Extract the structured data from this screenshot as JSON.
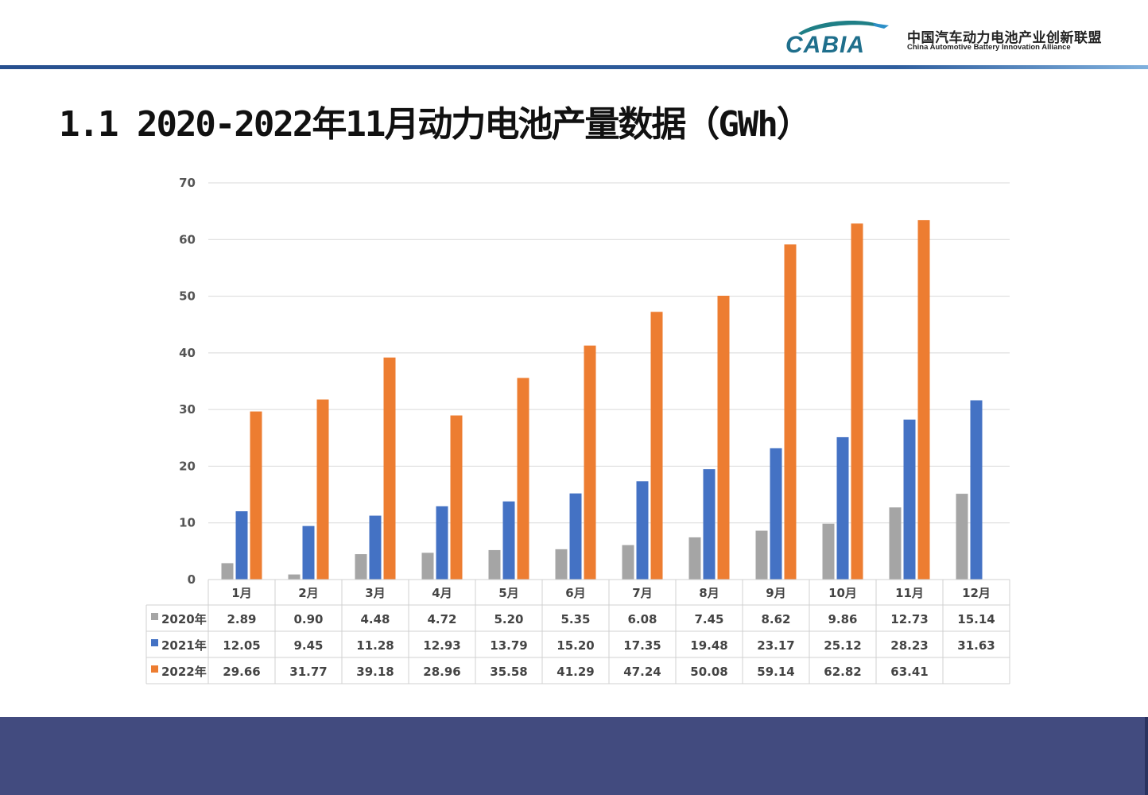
{
  "header": {
    "brand_logo_text": "CABIA",
    "org_name_cn": "中国汽车动力电池产业创新联盟",
    "org_name_en": "China Automotive Battery Innovation Alliance",
    "rule_colors": [
      "#27508f",
      "#7fb0dd"
    ]
  },
  "slide": {
    "title": "1.1 2020-2022年11月动力电池产量数据（GWh）"
  },
  "footer": {
    "band_color": "#424b7f"
  },
  "chart_data": {
    "type": "bar",
    "categories": [
      "1月",
      "2月",
      "3月",
      "4月",
      "5月",
      "6月",
      "7月",
      "8月",
      "9月",
      "10月",
      "11月",
      "12月"
    ],
    "series": [
      {
        "name": "2020年",
        "color": "#a5a5a5",
        "values": [
          2.89,
          0.9,
          4.48,
          4.72,
          5.2,
          5.35,
          6.08,
          7.45,
          8.62,
          9.86,
          12.73,
          15.14
        ],
        "labels": [
          "2.89",
          "0.90",
          "4.48",
          "4.72",
          "5.20",
          "5.35",
          "6.08",
          "7.45",
          "8.62",
          "9.86",
          "12.73",
          "15.14"
        ]
      },
      {
        "name": "2021年",
        "color": "#4472c4",
        "values": [
          12.05,
          9.45,
          11.28,
          12.93,
          13.79,
          15.2,
          17.35,
          19.48,
          23.17,
          25.12,
          28.23,
          31.63
        ],
        "labels": [
          "12.05",
          "9.45",
          "11.28",
          "12.93",
          "13.79",
          "15.20",
          "17.35",
          "19.48",
          "23.17",
          "25.12",
          "28.23",
          "31.63"
        ]
      },
      {
        "name": "2022年",
        "color": "#ed7d31",
        "values": [
          29.66,
          31.77,
          39.18,
          28.96,
          35.58,
          41.29,
          47.24,
          50.08,
          59.14,
          62.82,
          63.41,
          null
        ],
        "labels": [
          "29.66",
          "31.77",
          "39.18",
          "28.96",
          "35.58",
          "41.29",
          "47.24",
          "50.08",
          "59.14",
          "62.82",
          "63.41",
          ""
        ]
      }
    ],
    "ylim": [
      0,
      70
    ],
    "yticks": [
      "0",
      "10",
      "20",
      "30",
      "40",
      "50",
      "60",
      "70"
    ],
    "grid": true,
    "legend": "data-table-left",
    "data_table": true
  }
}
